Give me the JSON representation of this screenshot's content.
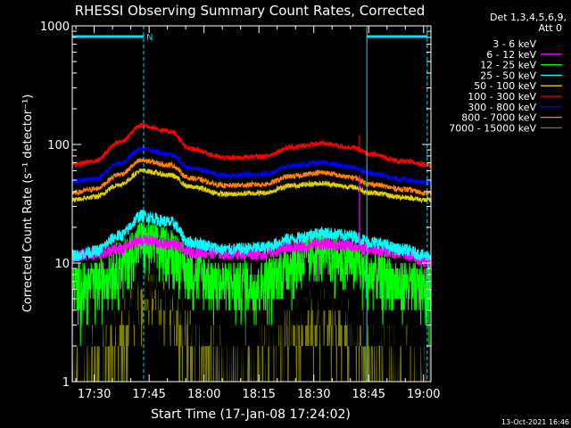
{
  "chart_data": {
    "type": "line",
    "title": "RHESSI Observing Summary Count Rates, Corrected",
    "xlabel": "Start Time (17-Jan-08 17:24:02)",
    "ylabel": "Corrected Count Rate (s⁻¹ detector⁻¹)",
    "y_scale": "log",
    "ylim": [
      1,
      1000
    ],
    "xlim_minutes_of_day": [
      1044,
      1142
    ],
    "x_ticks": [
      {
        "t": 1050,
        "label": "17:30"
      },
      {
        "t": 1065,
        "label": "17:45"
      },
      {
        "t": 1080,
        "label": "18:00"
      },
      {
        "t": 1095,
        "label": "18:15"
      },
      {
        "t": 1110,
        "label": "18:30"
      },
      {
        "t": 1125,
        "label": "18:45"
      },
      {
        "t": 1140,
        "label": "19:00"
      }
    ],
    "y_ticks": [
      {
        "v": 1,
        "label": "1"
      },
      {
        "v": 10,
        "label": "10"
      },
      {
        "v": 100,
        "label": "100"
      },
      {
        "v": 1000,
        "label": "1000"
      }
    ],
    "legend": {
      "placement": "top-right",
      "header": [
        "Det 1,3,4,5,6,9,",
        "Att 0"
      ]
    },
    "series": [
      {
        "name": "3 - 6 keV",
        "color": "#000000",
        "values": [
          {
            "t": 1044,
            "v": 2.0
          },
          {
            "t": 1050,
            "v": 2.3
          },
          {
            "t": 1057,
            "v": 4
          },
          {
            "t": 1063,
            "v": 7.5
          },
          {
            "t": 1071,
            "v": 6
          },
          {
            "t": 1076,
            "v": 3.2
          },
          {
            "t": 1086,
            "v": 2.4
          },
          {
            "t": 1096,
            "v": 2.6
          },
          {
            "t": 1104,
            "v": 4.5
          },
          {
            "t": 1112,
            "v": 5.3
          },
          {
            "t": 1120,
            "v": 4.2
          },
          {
            "t": 1126,
            "v": 2.8
          },
          {
            "t": 1134,
            "v": 2.2
          },
          {
            "t": 1141,
            "v": 1.9
          }
        ]
      },
      {
        "name": "6 - 12 keV",
        "color": "#ff00ff",
        "values": [
          {
            "t": 1044,
            "v": 11.5
          },
          {
            "t": 1050,
            "v": 12
          },
          {
            "t": 1057,
            "v": 13
          },
          {
            "t": 1063,
            "v": 15.5
          },
          {
            "t": 1071,
            "v": 14.5
          },
          {
            "t": 1076,
            "v": 12.5
          },
          {
            "t": 1086,
            "v": 12
          },
          {
            "t": 1096,
            "v": 12
          },
          {
            "t": 1104,
            "v": 13.5
          },
          {
            "t": 1112,
            "v": 14.5
          },
          {
            "t": 1120,
            "v": 14
          },
          {
            "t": 1126,
            "v": 13
          },
          {
            "t": 1134,
            "v": 12
          },
          {
            "t": 1141,
            "v": 10.5
          }
        ]
      },
      {
        "name": "12 - 25 keV",
        "color": "#00ff00",
        "values": [
          {
            "t": 1044,
            "v": 6.5
          },
          {
            "t": 1050,
            "v": 7
          },
          {
            "t": 1057,
            "v": 10
          },
          {
            "t": 1063,
            "v": 15.5
          },
          {
            "t": 1071,
            "v": 13.5
          },
          {
            "t": 1076,
            "v": 9
          },
          {
            "t": 1086,
            "v": 7
          },
          {
            "t": 1096,
            "v": 7.2
          },
          {
            "t": 1104,
            "v": 10.5
          },
          {
            "t": 1112,
            "v": 13
          },
          {
            "t": 1120,
            "v": 11
          },
          {
            "t": 1126,
            "v": 8.5
          },
          {
            "t": 1134,
            "v": 7
          },
          {
            "t": 1141,
            "v": 6.5
          }
        ]
      },
      {
        "name": "25 - 50 keV",
        "color": "#00ffff",
        "values": [
          {
            "t": 1044,
            "v": 11.5
          },
          {
            "t": 1050,
            "v": 12.5
          },
          {
            "t": 1057,
            "v": 17
          },
          {
            "t": 1063,
            "v": 25
          },
          {
            "t": 1071,
            "v": 22
          },
          {
            "t": 1076,
            "v": 15
          },
          {
            "t": 1086,
            "v": 13
          },
          {
            "t": 1096,
            "v": 13.5
          },
          {
            "t": 1104,
            "v": 16
          },
          {
            "t": 1112,
            "v": 18
          },
          {
            "t": 1120,
            "v": 17
          },
          {
            "t": 1126,
            "v": 15
          },
          {
            "t": 1134,
            "v": 13
          },
          {
            "t": 1141,
            "v": 11.5
          }
        ]
      },
      {
        "name": "50 - 100 keV",
        "color": "#e0d000",
        "values": [
          {
            "t": 1044,
            "v": 34
          },
          {
            "t": 1050,
            "v": 36
          },
          {
            "t": 1057,
            "v": 46
          },
          {
            "t": 1063,
            "v": 60
          },
          {
            "t": 1071,
            "v": 55
          },
          {
            "t": 1076,
            "v": 44
          },
          {
            "t": 1086,
            "v": 38
          },
          {
            "t": 1096,
            "v": 39
          },
          {
            "t": 1104,
            "v": 45
          },
          {
            "t": 1112,
            "v": 47
          },
          {
            "t": 1120,
            "v": 44
          },
          {
            "t": 1126,
            "v": 39
          },
          {
            "t": 1134,
            "v": 36
          },
          {
            "t": 1141,
            "v": 34
          }
        ]
      },
      {
        "name": "100 - 300 keV",
        "color": "#ff0000",
        "values": [
          {
            "t": 1044,
            "v": 68
          },
          {
            "t": 1050,
            "v": 72
          },
          {
            "t": 1057,
            "v": 105
          },
          {
            "t": 1063,
            "v": 145
          },
          {
            "t": 1071,
            "v": 128
          },
          {
            "t": 1076,
            "v": 92
          },
          {
            "t": 1086,
            "v": 77
          },
          {
            "t": 1096,
            "v": 79
          },
          {
            "t": 1104,
            "v": 95
          },
          {
            "t": 1112,
            "v": 102
          },
          {
            "t": 1120,
            "v": 95
          },
          {
            "t": 1126,
            "v": 82
          },
          {
            "t": 1134,
            "v": 72
          },
          {
            "t": 1141,
            "v": 68
          }
        ]
      },
      {
        "name": "300 - 800 keV",
        "color": "#0000ff",
        "values": [
          {
            "t": 1044,
            "v": 49
          },
          {
            "t": 1050,
            "v": 51
          },
          {
            "t": 1057,
            "v": 70
          },
          {
            "t": 1063,
            "v": 92
          },
          {
            "t": 1071,
            "v": 82
          },
          {
            "t": 1076,
            "v": 63
          },
          {
            "t": 1086,
            "v": 55
          },
          {
            "t": 1096,
            "v": 56
          },
          {
            "t": 1104,
            "v": 66
          },
          {
            "t": 1112,
            "v": 70
          },
          {
            "t": 1120,
            "v": 65
          },
          {
            "t": 1126,
            "v": 57
          },
          {
            "t": 1134,
            "v": 51
          },
          {
            "t": 1141,
            "v": 48
          }
        ]
      },
      {
        "name": "800 - 7000 keV",
        "color": "#ff8000",
        "values": [
          {
            "t": 1044,
            "v": 39
          },
          {
            "t": 1050,
            "v": 42
          },
          {
            "t": 1057,
            "v": 56
          },
          {
            "t": 1063,
            "v": 73
          },
          {
            "t": 1071,
            "v": 67
          },
          {
            "t": 1076,
            "v": 52
          },
          {
            "t": 1086,
            "v": 45
          },
          {
            "t": 1096,
            "v": 46
          },
          {
            "t": 1104,
            "v": 54
          },
          {
            "t": 1112,
            "v": 58
          },
          {
            "t": 1120,
            "v": 53
          },
          {
            "t": 1126,
            "v": 46
          },
          {
            "t": 1134,
            "v": 42
          },
          {
            "t": 1141,
            "v": 39
          }
        ]
      },
      {
        "name": "7000 - 15000 keV",
        "color": "#808000",
        "values": [
          {
            "t": 1044,
            "v": 1.6
          },
          {
            "t": 1050,
            "v": 1.8
          },
          {
            "t": 1057,
            "v": 3.2
          },
          {
            "t": 1063,
            "v": 6
          },
          {
            "t": 1071,
            "v": 5
          },
          {
            "t": 1076,
            "v": 2.6
          },
          {
            "t": 1086,
            "v": 1.7
          },
          {
            "t": 1096,
            "v": 1.9
          },
          {
            "t": 1104,
            "v": 3.3
          },
          {
            "t": 1112,
            "v": 4.2
          },
          {
            "t": 1120,
            "v": 3.4
          },
          {
            "t": 1126,
            "v": 2.2
          },
          {
            "t": 1134,
            "v": 1.7
          },
          {
            "t": 1141,
            "v": 1.5
          }
        ]
      }
    ],
    "spike": {
      "t": 1122.5,
      "series": [
        "100 - 300 keV",
        "6 - 12 keV"
      ],
      "values": [
        120,
        55
      ]
    },
    "annotations": {
      "night_bars": [
        {
          "t0": 1044,
          "t1": 1063.5,
          "label": "N"
        },
        {
          "t0": 1124.5,
          "t1": 1141
        }
      ],
      "vertical_lines": [
        {
          "t": 1063.5,
          "style": "dashed"
        },
        {
          "t": 1124.5,
          "style": "solid"
        },
        {
          "t": 1141,
          "style": "dashed"
        }
      ],
      "color": "#00e0ff"
    },
    "footer_date": "13-Oct-2021 16:46"
  }
}
